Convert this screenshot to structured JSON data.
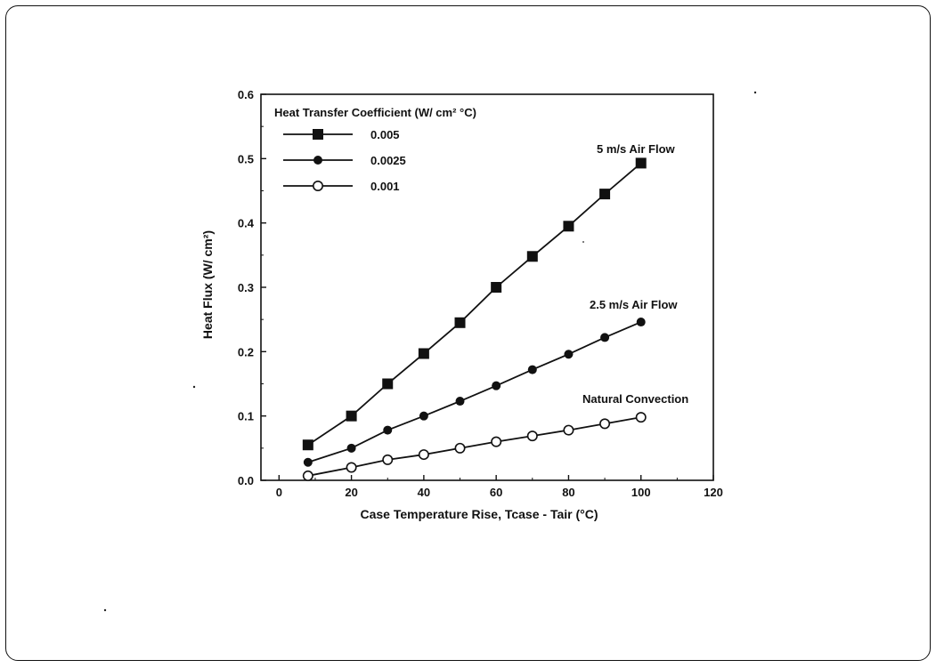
{
  "chart_data": {
    "type": "line",
    "title": "",
    "xlabel": "Case Temperature Rise, Tcase - Tair (°C)",
    "ylabel": "Heat Flux (W/ cm²)",
    "xlim": [
      -5,
      120
    ],
    "ylim": [
      0,
      0.6
    ],
    "x_ticks": [
      "0",
      "20",
      "40",
      "60",
      "80",
      "100",
      "120"
    ],
    "y_ticks": [
      "0.0",
      "0.1",
      "0.2",
      "0.3",
      "0.4",
      "0.5",
      "0.6"
    ],
    "legend_title": "Heat Transfer Coefficient (W/ cm² °C)",
    "legend_position": "top-left",
    "grid": false,
    "series": [
      {
        "name": "0.005",
        "marker": "filled-square",
        "annotation": "5 m/s Air Flow",
        "x": [
          8,
          20,
          30,
          40,
          50,
          60,
          70,
          80,
          90,
          100
        ],
        "y": [
          0.055,
          0.1,
          0.15,
          0.197,
          0.245,
          0.3,
          0.348,
          0.395,
          0.445,
          0.493
        ]
      },
      {
        "name": "0.0025",
        "marker": "filled-circle",
        "annotation": "2.5 m/s Air Flow",
        "x": [
          8,
          20,
          30,
          40,
          50,
          60,
          70,
          80,
          90,
          100
        ],
        "y": [
          0.028,
          0.05,
          0.078,
          0.1,
          0.123,
          0.147,
          0.172,
          0.196,
          0.222,
          0.246
        ]
      },
      {
        "name": "0.001",
        "marker": "open-circle",
        "annotation": "Natural Convection",
        "x": [
          8,
          20,
          30,
          40,
          50,
          60,
          70,
          80,
          90,
          100
        ],
        "y": [
          0.007,
          0.02,
          0.032,
          0.04,
          0.05,
          0.06,
          0.069,
          0.078,
          0.088,
          0.098
        ]
      }
    ]
  }
}
